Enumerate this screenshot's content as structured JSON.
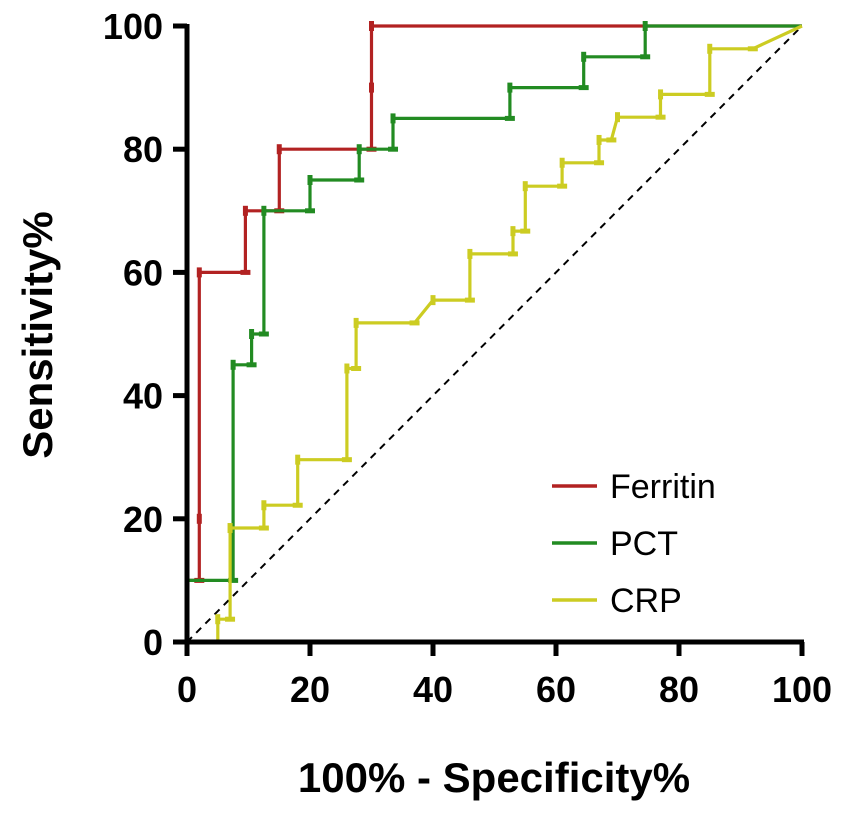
{
  "chart_data": {
    "type": "line",
    "title": "",
    "xlabel": "100% - Specificity%",
    "ylabel": "Sensitivity%",
    "xlim": [
      0,
      100
    ],
    "ylim": [
      0,
      100
    ],
    "xticks": [
      "0",
      "20",
      "40",
      "60",
      "80",
      "100"
    ],
    "yticks": [
      "0",
      "20",
      "40",
      "60",
      "80",
      "100"
    ],
    "grid": false,
    "legend_position": "bottom-right",
    "reference_line": {
      "name": "chance",
      "style": "dashed",
      "from": [
        0,
        0
      ],
      "to": [
        100,
        100
      ]
    },
    "series": [
      {
        "name": "Ferritin",
        "color": "#b22222",
        "points": [
          [
            0,
            0
          ],
          [
            0,
            10
          ],
          [
            2,
            10
          ],
          [
            2,
            20
          ],
          [
            2,
            60
          ],
          [
            9.5,
            60
          ],
          [
            9.5,
            70
          ],
          [
            15,
            70
          ],
          [
            15,
            80
          ],
          [
            30,
            80
          ],
          [
            30,
            90
          ],
          [
            30,
            100
          ],
          [
            100,
            100
          ]
        ]
      },
      {
        "name": "PCT",
        "color": "#228b22",
        "points": [
          [
            0,
            0
          ],
          [
            0,
            10
          ],
          [
            7.5,
            10
          ],
          [
            7.5,
            45
          ],
          [
            10.5,
            45
          ],
          [
            10.5,
            50
          ],
          [
            12.5,
            50
          ],
          [
            12.5,
            70
          ],
          [
            20,
            70
          ],
          [
            20,
            75
          ],
          [
            28,
            75
          ],
          [
            28,
            80
          ],
          [
            33.5,
            80
          ],
          [
            33.5,
            85
          ],
          [
            52.5,
            85
          ],
          [
            52.5,
            90
          ],
          [
            64.5,
            90
          ],
          [
            64.5,
            95
          ],
          [
            74.5,
            95
          ],
          [
            74.5,
            100
          ],
          [
            100,
            100
          ]
        ]
      },
      {
        "name": "CRP",
        "color": "#cccc22",
        "points": [
          [
            0,
            0
          ],
          [
            5,
            0
          ],
          [
            5,
            3.7
          ],
          [
            7,
            3.7
          ],
          [
            7,
            18.5
          ],
          [
            12.5,
            18.5
          ],
          [
            12.5,
            22.2
          ],
          [
            18,
            22.2
          ],
          [
            18,
            29.6
          ],
          [
            26,
            29.6
          ],
          [
            26,
            44.4
          ],
          [
            27.5,
            44.4
          ],
          [
            27.5,
            51.8
          ],
          [
            37,
            51.8
          ],
          [
            40,
            55.5
          ],
          [
            46,
            55.5
          ],
          [
            46,
            63
          ],
          [
            53,
            63
          ],
          [
            53,
            66.7
          ],
          [
            55,
            66.7
          ],
          [
            55,
            74
          ],
          [
            61,
            74
          ],
          [
            61,
            77.8
          ],
          [
            67,
            77.8
          ],
          [
            67,
            81.5
          ],
          [
            69,
            81.5
          ],
          [
            70,
            85.2
          ],
          [
            77,
            85.2
          ],
          [
            77,
            88.9
          ],
          [
            85,
            88.9
          ],
          [
            85,
            96.3
          ],
          [
            92,
            96.3
          ],
          [
            100,
            100
          ]
        ]
      }
    ]
  }
}
